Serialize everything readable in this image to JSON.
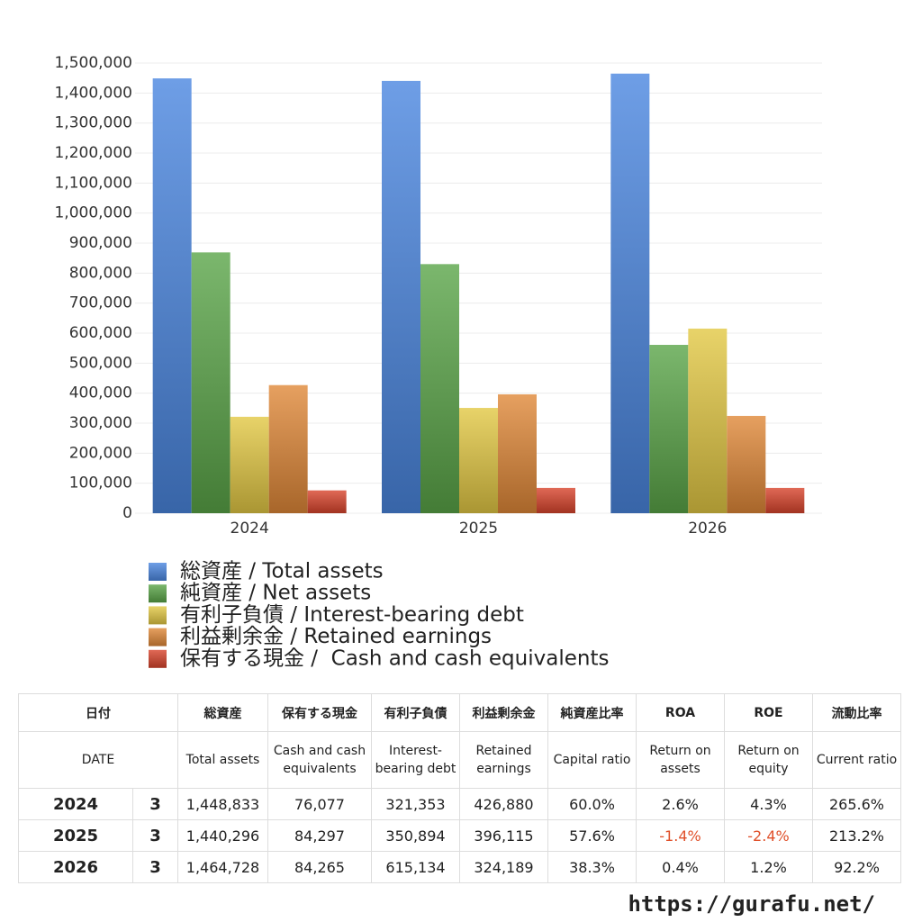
{
  "chart_data": {
    "type": "bar",
    "categories": [
      "2024",
      "2025",
      "2026"
    ],
    "series": [
      {
        "name": "総資産 / Total assets",
        "color": "#4a86e0",
        "values": [
          1448833,
          1440296,
          1464728
        ]
      },
      {
        "name": "純資産 / Net assets",
        "color": "#5aa548",
        "values": [
          869000,
          830000,
          561000
        ]
      },
      {
        "name": "有利子負債 / Interest-bearing debt",
        "color": "#e2c844",
        "values": [
          321353,
          350894,
          615134
        ]
      },
      {
        "name": "利益剰余金 / Retained earnings",
        "color": "#e08838",
        "values": [
          426880,
          396115,
          324189
        ]
      },
      {
        "name": "保有する現金 /  Cash and cash equivalents",
        "color": "#d8442c",
        "values": [
          76077,
          84297,
          84265
        ]
      }
    ],
    "ylim": [
      0,
      1500000
    ],
    "yticks": [
      0,
      {
        "value": 100000,
        "label": "100,000"
      },
      {
        "value": 200000,
        "label": "200,000"
      },
      {
        "value": 300000,
        "label": "300,000"
      },
      {
        "value": 400000,
        "label": "400,000"
      },
      {
        "value": 500000,
        "label": "500,000"
      },
      {
        "value": 600000,
        "label": "600,000"
      },
      {
        "value": 700000,
        "label": "700,000"
      },
      {
        "value": 800000,
        "label": "800,000"
      },
      {
        "value": 900000,
        "label": "900,000"
      },
      {
        "value": 1000000,
        "label": "1,000,000"
      },
      {
        "value": 1100000,
        "label": "1,100,000"
      },
      {
        "value": 1200000,
        "label": "1,200,000"
      },
      {
        "value": 1300000,
        "label": "1,300,000"
      },
      {
        "value": 1400000,
        "label": "1,400,000"
      },
      {
        "value": 1500000,
        "label": "1,500,000"
      }
    ],
    "grid": true
  },
  "table": {
    "header": [
      [
        "日付",
        "総資産",
        "保有する現金",
        "有利子負債",
        "利益剰余金",
        "純資産比率",
        "ROA",
        "ROE",
        "流動比率"
      ],
      [
        "DATE",
        "Total assets",
        "Cash and cash equivalents",
        "Interest-bearing debt",
        "Retained earnings",
        "Capital ratio",
        "Return on assets",
        "Return on equity",
        "Current ratio"
      ]
    ],
    "rows": [
      [
        "2024",
        "3",
        "1,448,833",
        "76,077",
        "321,353",
        "426,880",
        "60.0%",
        "2.6%",
        "4.3%",
        "265.6%"
      ],
      [
        "2025",
        "3",
        "1,440,296",
        "84,297",
        "350,894",
        "396,115",
        "57.6%",
        "-1.4%",
        "-2.4%",
        "213.2%"
      ],
      [
        "2026",
        "3",
        "1,464,728",
        "84,265",
        "615,134",
        "324,189",
        "38.3%",
        "0.4%",
        "1.2%",
        "92.2%"
      ]
    ]
  },
  "footer": "https://gurafu.net/"
}
